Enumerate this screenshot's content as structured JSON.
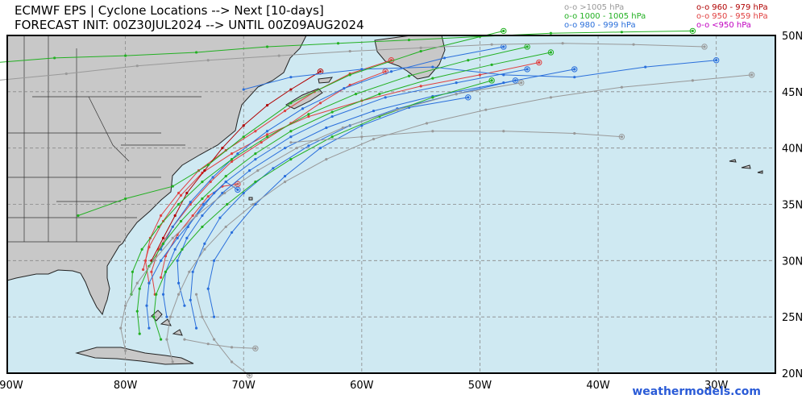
{
  "title_line1": "ECMWF EPS | Cyclone Locations --> Next [10-days]",
  "title_line2": "FORECAST INIT: 00Z30JUL2024 --> UNTIL 00Z09AUG2024",
  "legend": [
    {
      "symbol": "o-o",
      "label": ">1005 hPa",
      "color": "#999999"
    },
    {
      "symbol": "o-o",
      "label": "1000 - 1005 hPa",
      "color": "#22b022"
    },
    {
      "symbol": "o-o",
      "label": "980 - 999 hPa",
      "color": "#2a6fdb"
    },
    {
      "symbol": "o-o",
      "label": "960 - 979 hPa",
      "color": "#b00000"
    },
    {
      "symbol": "o-o",
      "label": "950 - 959 hPa",
      "color": "#e04040"
    },
    {
      "symbol": "o-o",
      "label": "<950 hPa",
      "color": "#c000c0"
    }
  ],
  "lon_labels": [
    "90W",
    "80W",
    "70W",
    "60W",
    "50W",
    "40W",
    "30W"
  ],
  "lat_labels": [
    "50N",
    "45N",
    "40N",
    "35N",
    "30N",
    "25N",
    "20N"
  ],
  "credit": "weathermodels.com",
  "colors": {
    "ocean": "#cfe9f2",
    "land": "#c8c8c8",
    "grid": "#888888"
  },
  "tracks": [
    {
      "cls": "red",
      "pts": [
        [
          -77.5,
          27
        ],
        [
          -77.8,
          29
        ],
        [
          -77.2,
          31
        ],
        [
          -76,
          33
        ],
        [
          -74.5,
          35
        ],
        [
          -72.8,
          37
        ],
        [
          -71,
          38.8
        ],
        [
          -68.5,
          40.5
        ],
        [
          -66,
          42.2
        ],
        [
          -63.5,
          44
        ],
        [
          -61,
          45.6
        ],
        [
          -58,
          46.8
        ]
      ]
    },
    {
      "cls": "red",
      "pts": [
        [
          -78,
          28
        ],
        [
          -78.3,
          30
        ],
        [
          -77.9,
          32
        ],
        [
          -77,
          34
        ],
        [
          -75.5,
          36
        ],
        [
          -73.8,
          38
        ],
        [
          -71.5,
          39.8
        ],
        [
          -69,
          41.5
        ],
        [
          -66.5,
          43.3
        ],
        [
          -64,
          45
        ],
        [
          -61,
          46.6
        ],
        [
          -57.5,
          47.8
        ]
      ]
    },
    {
      "cls": "red",
      "pts": [
        [
          -77,
          28.5
        ],
        [
          -76.6,
          30.4
        ],
        [
          -75.6,
          32.3
        ],
        [
          -74.3,
          34
        ],
        [
          -73,
          35.7
        ],
        [
          -71.8,
          36.6
        ],
        [
          -70.5,
          36.8
        ]
      ]
    },
    {
      "cls": "red",
      "pts": [
        [
          -78.5,
          29.2
        ],
        [
          -78,
          31.2
        ],
        [
          -76.8,
          33.5
        ],
        [
          -75.3,
          35.8
        ],
        [
          -73.5,
          37.8
        ],
        [
          -71,
          39.5
        ],
        [
          -68,
          41.2
        ],
        [
          -64.5,
          42.8
        ],
        [
          -60,
          44.2
        ],
        [
          -55,
          45.5
        ],
        [
          -50,
          46.5
        ],
        [
          -45,
          47.6
        ]
      ]
    },
    {
      "cls": "dred",
      "pts": [
        [
          -77.8,
          30
        ],
        [
          -76.8,
          32
        ],
        [
          -75.8,
          34
        ],
        [
          -74.8,
          36
        ],
        [
          -73.3,
          38
        ],
        [
          -71.8,
          40
        ],
        [
          -70,
          42
        ],
        [
          -68,
          43.8
        ],
        [
          -66,
          45.2
        ],
        [
          -63.5,
          46.8
        ]
      ]
    },
    {
      "cls": "blue",
      "pts": [
        [
          -75,
          26
        ],
        [
          -75.5,
          28
        ],
        [
          -75.6,
          30
        ],
        [
          -74.8,
          32
        ],
        [
          -73.5,
          34
        ],
        [
          -71.8,
          36
        ],
        [
          -69.5,
          38
        ],
        [
          -66.5,
          40
        ],
        [
          -63,
          41.8
        ],
        [
          -59,
          43.3
        ],
        [
          -54,
          44.6
        ],
        [
          -48,
          45.8
        ],
        [
          -42,
          47
        ]
      ]
    },
    {
      "cls": "blue",
      "pts": [
        [
          -76.5,
          25
        ],
        [
          -76.8,
          27
        ],
        [
          -76.6,
          29
        ],
        [
          -75.8,
          31
        ],
        [
          -74.7,
          33
        ],
        [
          -73.4,
          35
        ],
        [
          -71.5,
          37
        ],
        [
          -69,
          39
        ],
        [
          -66,
          41
        ],
        [
          -62.5,
          42.8
        ],
        [
          -58,
          44.5
        ],
        [
          -52,
          45.8
        ],
        [
          -46,
          47
        ]
      ]
    },
    {
      "cls": "blue",
      "pts": [
        [
          -74,
          24
        ],
        [
          -74.5,
          26.5
        ],
        [
          -74.3,
          29
        ],
        [
          -73.3,
          31.5
        ],
        [
          -72,
          33.8
        ],
        [
          -70,
          36
        ],
        [
          -67.5,
          38.2
        ],
        [
          -64.5,
          40.2
        ],
        [
          -61,
          42
        ],
        [
          -57,
          43.5
        ],
        [
          -52,
          44.8
        ],
        [
          -47,
          46
        ]
      ]
    },
    {
      "cls": "blue",
      "pts": [
        [
          -78,
          24
        ],
        [
          -78.2,
          26
        ],
        [
          -78,
          28
        ],
        [
          -77,
          30
        ],
        [
          -75.6,
          32
        ],
        [
          -74,
          34
        ],
        [
          -72.5,
          36
        ],
        [
          -71.5,
          37
        ],
        [
          -70.5,
          36.3
        ]
      ]
    },
    {
      "cls": "blue",
      "pts": [
        [
          -77,
          31
        ],
        [
          -76,
          33
        ],
        [
          -74.5,
          35.2
        ],
        [
          -72.6,
          37.4
        ],
        [
          -70.5,
          39.5
        ],
        [
          -68,
          41.5
        ],
        [
          -65,
          43.5
        ],
        [
          -61.5,
          45.3
        ],
        [
          -57.5,
          46.8
        ],
        [
          -53,
          48
        ],
        [
          -48,
          49
        ]
      ]
    },
    {
      "cls": "blue",
      "pts": [
        [
          -72.5,
          25
        ],
        [
          -73,
          27.5
        ],
        [
          -72.5,
          30
        ],
        [
          -71,
          32.5
        ],
        [
          -69,
          35
        ],
        [
          -66.5,
          37.5
        ],
        [
          -63.5,
          40
        ],
        [
          -60,
          42
        ],
        [
          -56,
          43.6
        ],
        [
          -51,
          44.5
        ]
      ]
    },
    {
      "cls": "blue",
      "pts": [
        [
          -70,
          45.2
        ],
        [
          -66,
          46.3
        ],
        [
          -60,
          47
        ],
        [
          -54,
          47.2
        ],
        [
          -48,
          46.5
        ],
        [
          -42,
          46.3
        ],
        [
          -36,
          47.2
        ],
        [
          -30,
          47.8
        ]
      ]
    },
    {
      "cls": "green",
      "pts": [
        [
          -78.8,
          23.5
        ],
        [
          -79,
          25.5
        ],
        [
          -78.8,
          27.5
        ],
        [
          -78,
          29.5
        ],
        [
          -76.8,
          31.5
        ],
        [
          -75.3,
          33.5
        ],
        [
          -73.5,
          35.5
        ],
        [
          -71.5,
          37.5
        ],
        [
          -69,
          39.5
        ],
        [
          -66,
          41.5
        ],
        [
          -62.5,
          43.2
        ],
        [
          -58.5,
          44.8
        ],
        [
          -54,
          46.2
        ],
        [
          -49,
          47.4
        ],
        [
          -44,
          48.5
        ]
      ]
    },
    {
      "cls": "green",
      "pts": [
        [
          -79.5,
          27
        ],
        [
          -79.4,
          29
        ],
        [
          -78.6,
          31
        ],
        [
          -77.2,
          33
        ],
        [
          -75.5,
          35
        ],
        [
          -73.5,
          37
        ],
        [
          -71,
          39
        ],
        [
          -68,
          41
        ],
        [
          -64.5,
          43
        ],
        [
          -60.5,
          44.8
        ],
        [
          -56,
          46.4
        ],
        [
          -51,
          47.8
        ],
        [
          -46,
          49
        ]
      ]
    },
    {
      "cls": "green",
      "pts": [
        [
          -77,
          23
        ],
        [
          -77.6,
          25
        ],
        [
          -77.4,
          27
        ],
        [
          -76.6,
          29
        ],
        [
          -75.2,
          31
        ],
        [
          -73.5,
          33
        ],
        [
          -71.4,
          35
        ],
        [
          -69,
          37
        ],
        [
          -66,
          39
        ],
        [
          -62.5,
          41
        ],
        [
          -58.5,
          42.8
        ],
        [
          -54,
          44.5
        ],
        [
          -49,
          46
        ]
      ]
    },
    {
      "cls": "green",
      "pts": [
        [
          -84,
          34
        ],
        [
          -80,
          35.5
        ],
        [
          -76,
          36.6
        ],
        [
          -73,
          38.5
        ],
        [
          -70,
          41
        ],
        [
          -66,
          44
        ],
        [
          -61,
          46.5
        ],
        [
          -55,
          48.6
        ],
        [
          -48,
          50.4
        ]
      ]
    },
    {
      "cls": "green",
      "pts": [
        [
          -92,
          47.5
        ],
        [
          -86,
          48
        ],
        [
          -80,
          48.2
        ],
        [
          -74,
          48.5
        ],
        [
          -68,
          49
        ],
        [
          -62,
          49.3
        ],
        [
          -56,
          49.6
        ],
        [
          -50,
          49.9
        ],
        [
          -44,
          50.2
        ],
        [
          -38,
          50.3
        ],
        [
          -32,
          50.4
        ]
      ]
    },
    {
      "cls": "grey",
      "pts": [
        [
          -76,
          21
        ],
        [
          -76.5,
          23
        ],
        [
          -76.2,
          25
        ],
        [
          -75.5,
          27
        ],
        [
          -74.6,
          29
        ],
        [
          -73.3,
          31
        ],
        [
          -71.5,
          33
        ],
        [
          -69.2,
          35
        ],
        [
          -66.5,
          37
        ],
        [
          -63,
          39
        ],
        [
          -59,
          40.8
        ],
        [
          -54.5,
          42.2
        ],
        [
          -49.5,
          43.4
        ],
        [
          -44,
          44.5
        ],
        [
          -38,
          45.4
        ],
        [
          -32,
          46
        ],
        [
          -27,
          46.5
        ]
      ]
    },
    {
      "cls": "grey",
      "pts": [
        [
          -80,
          22
        ],
        [
          -80.4,
          24
        ],
        [
          -80,
          26
        ],
        [
          -79,
          28
        ],
        [
          -77.6,
          30
        ],
        [
          -76,
          32
        ],
        [
          -74,
          34
        ],
        [
          -71.6,
          36
        ],
        [
          -68.8,
          38
        ],
        [
          -65.5,
          40
        ],
        [
          -61.6,
          41.8
        ],
        [
          -57,
          43.4
        ],
        [
          -52,
          44.8
        ],
        [
          -46.5,
          45.8
        ]
      ]
    },
    {
      "cls": "grey",
      "pts": [
        [
          -75,
          23
        ],
        [
          -73,
          22.6
        ],
        [
          -71,
          22.3
        ],
        [
          -69,
          22.2
        ]
      ]
    },
    {
      "cls": "grey",
      "pts": [
        [
          -66,
          40.5
        ],
        [
          -60,
          41
        ],
        [
          -54,
          41.5
        ],
        [
          -48,
          41.5
        ],
        [
          -42,
          41.3
        ],
        [
          -38,
          41
        ]
      ]
    },
    {
      "cls": "grey",
      "pts": [
        [
          -91,
          46
        ],
        [
          -85,
          46.6
        ],
        [
          -79,
          47.3
        ],
        [
          -73,
          47.8
        ],
        [
          -67,
          48.2
        ],
        [
          -61,
          48.6
        ],
        [
          -55,
          48.9
        ],
        [
          -49,
          49.2
        ],
        [
          -43,
          49.3
        ],
        [
          -37,
          49.2
        ],
        [
          -31,
          49
        ]
      ]
    },
    {
      "cls": "grey",
      "pts": [
        [
          -74,
          27
        ],
        [
          -73.5,
          25
        ],
        [
          -72.5,
          23
        ],
        [
          -71,
          21
        ],
        [
          -69.5,
          19.8
        ]
      ]
    }
  ]
}
